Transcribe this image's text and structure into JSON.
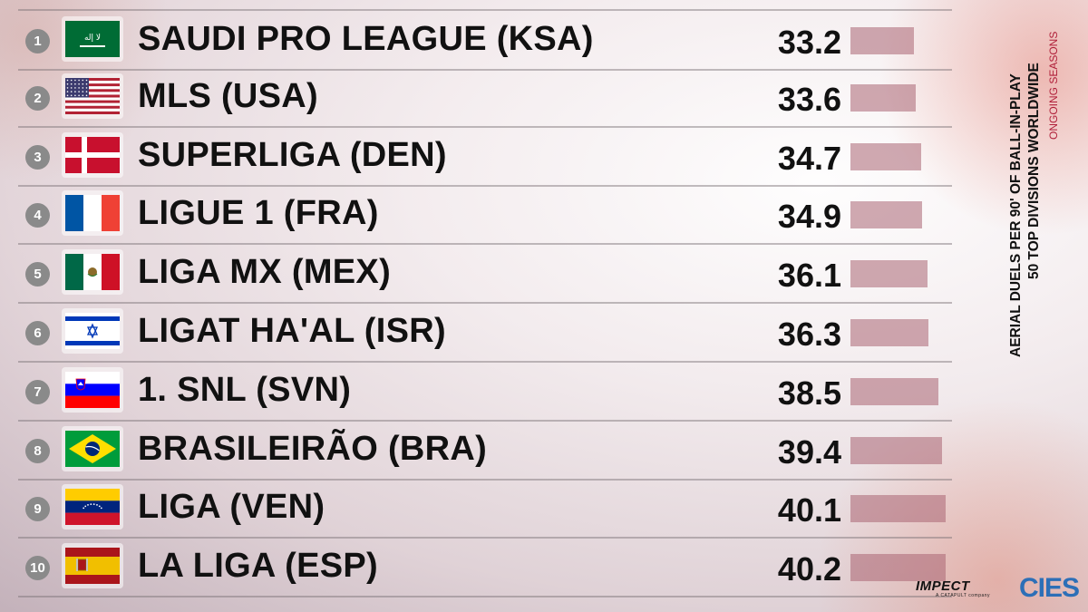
{
  "chart_data": {
    "type": "bar",
    "title": "AERIAL DUELS PER 90' OF BALL-IN-PLAY",
    "subtitle": "50 TOP DIVISIONS WORLDWIDE",
    "note": "ONGOING SEASONS",
    "categories": [
      "SAUDI PRO LEAGUE (KSA)",
      "MLS (USA)",
      "SUPERLIGA (DEN)",
      "LIGUE 1 (FRA)",
      "LIGA MX (MEX)",
      "LIGAT HA'AL (ISR)",
      "1. SNL (SVN)",
      "BRASILEIRÃO (BRA)",
      "LIGA (VEN)",
      "LA LIGA (ESP)"
    ],
    "ranks": [
      "1",
      "2",
      "3",
      "4",
      "5",
      "6",
      "7",
      "8",
      "9",
      "10"
    ],
    "values": [
      33.2,
      33.6,
      34.7,
      34.9,
      36.1,
      36.3,
      38.5,
      39.4,
      40.1,
      40.2
    ],
    "value_labels": [
      "33.2",
      "33.6",
      "34.7",
      "34.9",
      "36.1",
      "36.3",
      "38.5",
      "39.4",
      "40.1",
      "40.2"
    ],
    "flag_icons": [
      "flag-ksa-icon",
      "flag-usa-icon",
      "flag-den-icon",
      "flag-fra-icon",
      "flag-mex-icon",
      "flag-isr-icon",
      "flag-svn-icon",
      "flag-bra-icon",
      "flag-ven-icon",
      "flag-esp-icon"
    ],
    "bar_color": "#aa6473"
  },
  "logos": {
    "impect": "IMPECT",
    "impect_sub": "A CATAPULT company",
    "cies": "CIES"
  },
  "colors": {
    "note": "#b0203a",
    "cies": "#2c6fb7"
  }
}
